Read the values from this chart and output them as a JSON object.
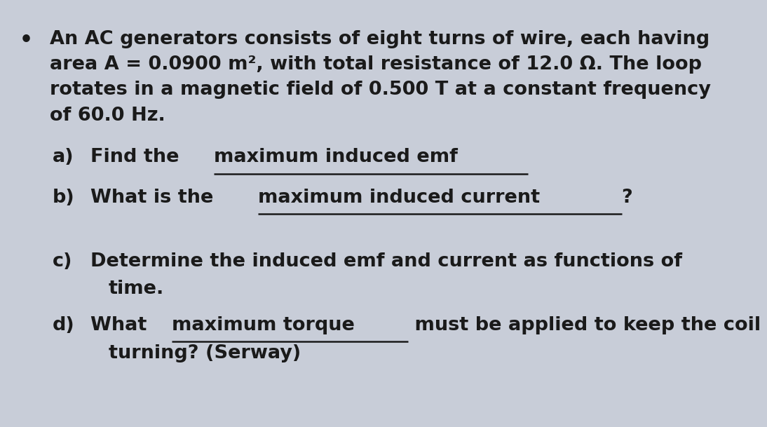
{
  "background_color": "#c8cdd8",
  "bullet_text_lines": [
    "An AC generators consists of eight turns of wire, each having",
    "area A = 0.0900 m², with total resistance of 12.0 Ω. The loop",
    "rotates in a magnetic field of 0.500 T at a constant frequency",
    "of 60.0 Hz."
  ],
  "items": [
    {
      "label": "a)",
      "parts": [
        {
          "text": "Find the ",
          "underline": false
        },
        {
          "text": "maximum induced emf",
          "underline": true
        }
      ],
      "continuation": null
    },
    {
      "label": "b)",
      "parts": [
        {
          "text": "What is the ",
          "underline": false
        },
        {
          "text": "maximum induced current",
          "underline": true
        },
        {
          "text": "?",
          "underline": false
        }
      ],
      "continuation": null
    },
    {
      "label": "c)",
      "parts": [
        {
          "text": "Determine the induced emf and current as functions of",
          "underline": false
        }
      ],
      "continuation": "time."
    },
    {
      "label": "d)",
      "parts": [
        {
          "text": "What ",
          "underline": false
        },
        {
          "text": "maximum torque",
          "underline": true
        },
        {
          "text": " must be applied to keep the coil",
          "underline": false
        }
      ],
      "continuation": "turning? (Serway)"
    }
  ],
  "font_size": 19.5,
  "font_color": "#1a1a1a",
  "font_weight": "bold"
}
